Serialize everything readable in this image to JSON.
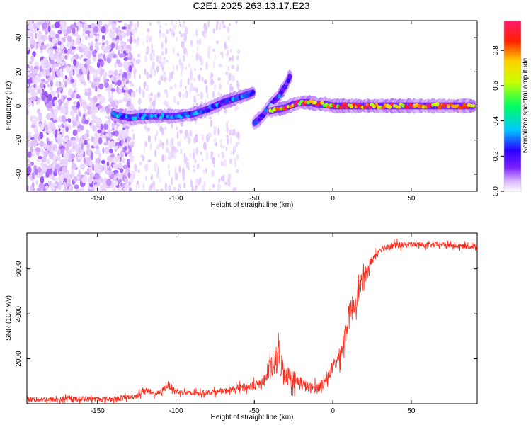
{
  "title": "C2E1.2025.263.13.17.E23",
  "chart_data": [
    {
      "type": "heatmap",
      "xlabel": "Height of straight line (km)",
      "ylabel": "Frequency (Hz)",
      "xlim": [
        -195,
        92
      ],
      "ylim": [
        -50,
        50
      ],
      "xticks": [
        -150,
        -100,
        -50,
        0,
        50
      ],
      "yticks": [
        -40,
        -20,
        0,
        20,
        40
      ],
      "colorbar": {
        "label": "Normalized spectral amplitude",
        "range": [
          0,
          0.97
        ],
        "ticks": [
          "0.0",
          "0.2",
          "0.4",
          "0.6",
          "0.8"
        ],
        "tick_values": [
          0,
          0.2,
          0.4,
          0.6,
          0.8
        ],
        "colormap": [
          "#ffffff",
          "#d9b3ff",
          "#7a1fff",
          "#2b00ff",
          "#00c8ff",
          "#00ff60",
          "#c8ff00",
          "#ffd200",
          "#ff2000",
          "#ff1a6e"
        ]
      },
      "ridges": [
        {
          "name": "",
          "x": [
            -140,
            -130,
            -120,
            -110,
            -100,
            -90,
            -80,
            -70,
            -60,
            -50
          ],
          "y": [
            -5,
            -7,
            -6,
            -6,
            -6,
            -5,
            -2,
            2,
            5,
            8
          ],
          "amplitude": 0.45
        },
        {
          "name": "",
          "x": [
            -50,
            -45,
            -40,
            -35,
            -30,
            -27
          ],
          "y": [
            -10,
            -6,
            0,
            5,
            12,
            18
          ],
          "amplitude": 0.4
        },
        {
          "name": "",
          "x": [
            -40,
            -35,
            -30,
            -25,
            -20,
            -15,
            -10,
            -5,
            0,
            5,
            10,
            20,
            40,
            60,
            90
          ],
          "y": [
            -3,
            -2,
            -1,
            1,
            2,
            2,
            1,
            1,
            0,
            0,
            0,
            0,
            0,
            0,
            0
          ],
          "amplitude": 0.9
        }
      ],
      "noise_region_x": [
        -195,
        -128
      ]
    },
    {
      "type": "line",
      "xlabel": "Height of straight line (km)",
      "ylabel": "SNR (10 * v/v)",
      "xlim": [
        -195,
        92
      ],
      "ylim": [
        0,
        7600
      ],
      "xticks": [
        -150,
        -100,
        -50,
        0,
        50
      ],
      "yticks": [
        2000,
        4000,
        6000
      ],
      "series": [
        {
          "name": "",
          "color": "#ff2a1a",
          "x": [
            -195,
            -180,
            -160,
            -140,
            -130,
            -125,
            -120,
            -115,
            -110,
            -105,
            -100,
            -90,
            -80,
            -70,
            -60,
            -50,
            -45,
            -40,
            -35,
            -30,
            -25,
            -20,
            -15,
            -10,
            -5,
            0,
            5,
            10,
            15,
            20,
            25,
            30,
            35,
            40,
            50,
            60,
            70,
            80,
            92
          ],
          "y": [
            200,
            180,
            220,
            200,
            300,
            350,
            650,
            420,
            500,
            850,
            550,
            450,
            500,
            550,
            700,
            800,
            900,
            1500,
            2000,
            1300,
            1100,
            900,
            700,
            700,
            1000,
            1600,
            2200,
            3800,
            4800,
            5600,
            6400,
            6900,
            7000,
            7050,
            7100,
            7050,
            7100,
            7000,
            7000
          ],
          "noise": [
            150,
            150,
            150,
            150,
            150,
            150,
            200,
            150,
            150,
            200,
            150,
            150,
            150,
            150,
            200,
            250,
            300,
            600,
            900,
            600,
            500,
            400,
            300,
            300,
            300,
            350,
            500,
            700,
            700,
            500,
            300,
            200,
            200,
            200,
            150,
            150,
            150,
            150,
            150
          ]
        }
      ]
    }
  ]
}
